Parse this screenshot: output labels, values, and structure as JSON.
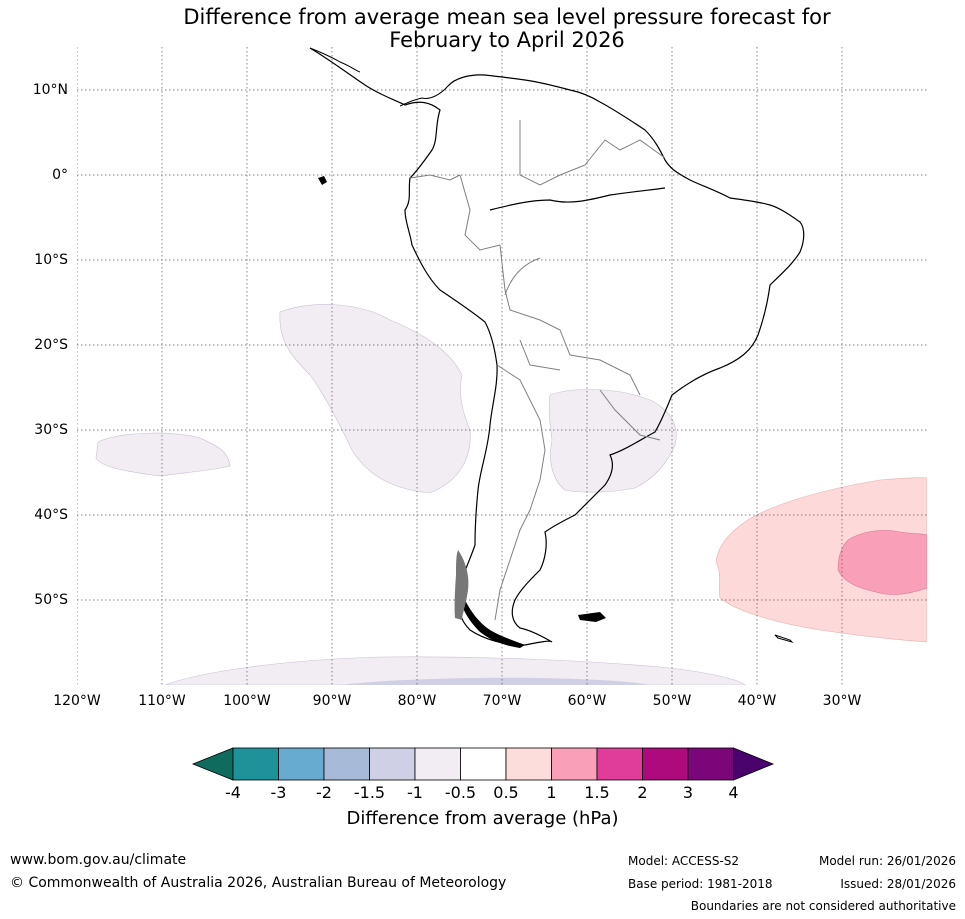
{
  "title_line1": "Difference from average mean sea level pressure forecast for",
  "title_line2": "February to April 2026",
  "map": {
    "lat_labels": [
      "10°N",
      "0°",
      "10°S",
      "20°S",
      "30°S",
      "40°S",
      "50°S"
    ],
    "lon_labels": [
      "120°W",
      "110°W",
      "100°W",
      "90°W",
      "80°W",
      "70°W",
      "60°W",
      "50°W",
      "40°W",
      "30°W"
    ],
    "colors": {
      "neg_0_5_to_neg_1": "#f1edf3",
      "neg_1_to_neg_1_5": "#cfd0e5",
      "pos_0_5_to_1": "#fdd9d9",
      "pos_1_to_1_5": "#f99fb7",
      "gridline": "#555555",
      "coast": "#000000",
      "border": "#808080"
    }
  },
  "colorbar": {
    "ticks": [
      "-4",
      "-3",
      "-2",
      "-1.5",
      "-1",
      "-0.5",
      "0.5",
      "1",
      "1.5",
      "2",
      "3",
      "4"
    ],
    "colors": [
      "#0e6b5e",
      "#1d9399",
      "#68abd0",
      "#a7bbd9",
      "#cfd0e5",
      "#f1edf3",
      "#ffffff",
      "#fddcdc",
      "#f99fb7",
      "#e03d9a",
      "#ae0a7d",
      "#7b067a",
      "#4a036d"
    ],
    "label": "Difference from average (hPa)"
  },
  "footer": {
    "website": "www.bom.gov.au/climate",
    "copyright": "© Commonwealth of Australia 2026, Australian Bureau of Meteorology",
    "model": "Model: ACCESS-S2",
    "base_period": "Base period: 1981-2018",
    "model_run": "Model run: 26/01/2026",
    "issued": "Issued: 28/01/2026",
    "disclaimer": "Boundaries are not considered authoritative"
  }
}
